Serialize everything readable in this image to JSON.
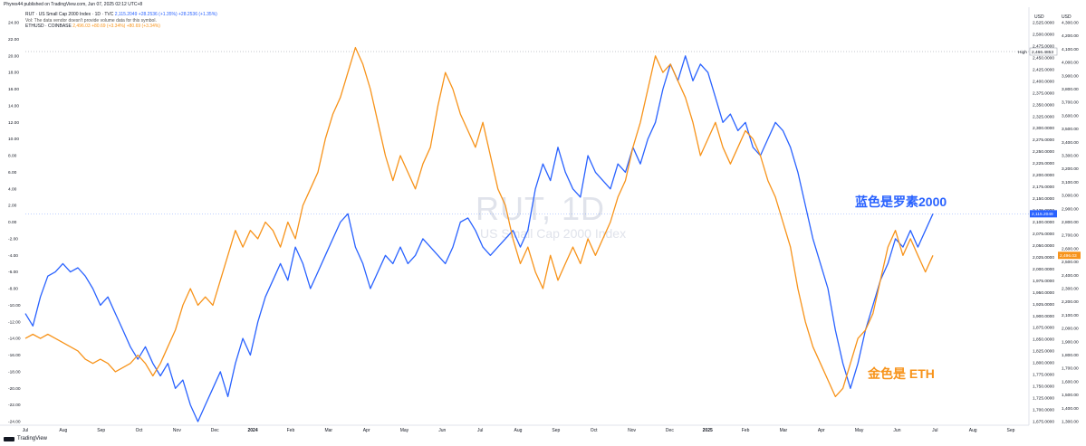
{
  "header": {
    "published": "Phyres44 published on TradingView.com, Jun 07, 2025 02:12 UTC+8"
  },
  "legend": {
    "rut_name": "RUT · US Small Cap 2000 Index · 1D · TVC",
    "rut_values": "2,115.2049  +28.2536 (+1.35%)  +28.2536 (+1.35%)",
    "vol_note": "Vol: The data vendor doesn't provide volume data for this symbol.",
    "eth_name": "ETHUSD · COINBASE",
    "eth_values": "2,496.03  +80.69 (+3.34%)  +80.69 (+3.34%)"
  },
  "watermark": {
    "symbol": "RUT, 1D",
    "description": "US Small Cap 2000 Index"
  },
  "annotations": {
    "blue": "蓝色是罗素2000",
    "orange": "金色是 ETH"
  },
  "axis_headers": {
    "usd_left": "USD",
    "usd_right": "USD"
  },
  "footer": {
    "brand": "TradingView"
  },
  "markers": {
    "high_label": "High",
    "high_value": "2,466.4853",
    "rut_last": "2,115.2049",
    "eth_last": "2,496.03"
  },
  "colors": {
    "rut": "#2962ff",
    "eth": "#f7931a",
    "grid": "#f0f3fa"
  },
  "chart_data": {
    "type": "line",
    "x_ticks": [
      "Jul",
      "Aug",
      "Sep",
      "Oct",
      "Nov",
      "Dec",
      "2024",
      "Feb",
      "Mar",
      "Apr",
      "May",
      "Jun",
      "Jul",
      "Aug",
      "Sep",
      "Oct",
      "Nov",
      "Dec",
      "2025",
      "Feb",
      "Mar",
      "Apr",
      "May",
      "Jun",
      "Jul",
      "Aug",
      "Sep"
    ],
    "bold_x_ticks": [
      "2024",
      "2025"
    ],
    "left_axis": {
      "label": "percent",
      "range": [
        -24,
        24
      ],
      "ticks": [
        "24.00",
        "22.00",
        "20.00",
        "18.00",
        "16.00",
        "14.00",
        "12.00",
        "10.00",
        "8.00",
        "6.00",
        "4.00",
        "2.00",
        "0.00",
        "-2.00",
        "-4.00",
        "-6.00",
        "-8.00",
        "-10.00",
        "-12.00",
        "-14.00",
        "-16.00",
        "-18.00",
        "-20.00",
        "-22.00",
        "-24.00"
      ]
    },
    "rut_axis": {
      "range": [
        1675,
        2525
      ],
      "ticks": [
        "2,525.0000",
        "2,500.0000",
        "2,475.0000",
        "2,450.0000",
        "2,425.0000",
        "2,400.0000",
        "2,375.0000",
        "2,350.0000",
        "2,325.0000",
        "2,300.0000",
        "2,275.0000",
        "2,250.0000",
        "2,225.0000",
        "2,200.0000",
        "2,175.0000",
        "2,150.0000",
        "2,125.0000",
        "2,100.0000",
        "2,075.0000",
        "2,050.0000",
        "2,025.0000",
        "2,000.0000",
        "1,975.0000",
        "1,950.0000",
        "1,925.0000",
        "1,900.0000",
        "1,875.0000",
        "1,850.0000",
        "1,825.0000",
        "1,800.0000",
        "1,775.0000",
        "1,750.0000",
        "1,725.0000",
        "1,700.0000",
        "1,675.0000"
      ]
    },
    "eth_axis": {
      "range": [
        1300,
        4300
      ],
      "ticks": [
        "4,300.00",
        "4,200.00",
        "4,100.00",
        "4,000.00",
        "3,900.00",
        "3,800.00",
        "3,700.00",
        "3,600.00",
        "3,500.00",
        "3,400.00",
        "3,300.00",
        "3,200.00",
        "3,100.00",
        "3,000.00",
        "2,900.00",
        "2,800.00",
        "2,700.00",
        "2,600.00",
        "2,500.00",
        "2,400.00",
        "2,300.00",
        "2,200.00",
        "2,100.00",
        "2,000.00",
        "1,900.00",
        "1,800.00",
        "1,700.00",
        "1,600.00",
        "1,500.00",
        "1,400.00",
        "1,300.00"
      ]
    },
    "series": [
      {
        "name": "RUT",
        "unit": "percent change",
        "values": [
          [
            0,
            -11
          ],
          [
            2,
            -12.5
          ],
          [
            4,
            -9
          ],
          [
            6,
            -6.5
          ],
          [
            8,
            -6
          ],
          [
            10,
            -5
          ],
          [
            12,
            -6
          ],
          [
            14,
            -5.5
          ],
          [
            16,
            -6.5
          ],
          [
            18,
            -8
          ],
          [
            20,
            -10
          ],
          [
            22,
            -9
          ],
          [
            24,
            -11
          ],
          [
            26,
            -13
          ],
          [
            28,
            -15
          ],
          [
            30,
            -16.5
          ],
          [
            32,
            -15
          ],
          [
            34,
            -17
          ],
          [
            36,
            -18.5
          ],
          [
            38,
            -17
          ],
          [
            40,
            -20
          ],
          [
            42,
            -19
          ],
          [
            44,
            -22
          ],
          [
            46,
            -24
          ],
          [
            48,
            -22
          ],
          [
            50,
            -20
          ],
          [
            52,
            -18
          ],
          [
            54,
            -21
          ],
          [
            56,
            -17
          ],
          [
            58,
            -14
          ],
          [
            60,
            -16
          ],
          [
            62,
            -12
          ],
          [
            64,
            -9
          ],
          [
            66,
            -7
          ],
          [
            68,
            -5
          ],
          [
            70,
            -7
          ],
          [
            72,
            -3
          ],
          [
            74,
            -5
          ],
          [
            76,
            -8
          ],
          [
            78,
            -6
          ],
          [
            80,
            -4
          ],
          [
            82,
            -2
          ],
          [
            84,
            0
          ],
          [
            86,
            1
          ],
          [
            88,
            -3
          ],
          [
            90,
            -5
          ],
          [
            92,
            -8
          ],
          [
            94,
            -6
          ],
          [
            96,
            -4
          ],
          [
            98,
            -5
          ],
          [
            100,
            -3
          ],
          [
            102,
            -5
          ],
          [
            104,
            -4
          ],
          [
            106,
            -2
          ],
          [
            108,
            -3
          ],
          [
            110,
            -4
          ],
          [
            112,
            -5
          ],
          [
            114,
            -3
          ],
          [
            116,
            0
          ],
          [
            118,
            0.5
          ],
          [
            120,
            -1
          ],
          [
            122,
            -3
          ],
          [
            124,
            -4
          ],
          [
            126,
            -3
          ],
          [
            128,
            -2
          ],
          [
            130,
            -1
          ],
          [
            132,
            -3
          ],
          [
            134,
            -1
          ],
          [
            136,
            4
          ],
          [
            138,
            7
          ],
          [
            140,
            5
          ],
          [
            142,
            9
          ],
          [
            144,
            6
          ],
          [
            146,
            4
          ],
          [
            148,
            3
          ],
          [
            150,
            8
          ],
          [
            152,
            6
          ],
          [
            154,
            5
          ],
          [
            156,
            4
          ],
          [
            158,
            7
          ],
          [
            160,
            6
          ],
          [
            162,
            9
          ],
          [
            164,
            7
          ],
          [
            166,
            10
          ],
          [
            168,
            12
          ],
          [
            170,
            16
          ],
          [
            172,
            19
          ],
          [
            174,
            17
          ],
          [
            176,
            20
          ],
          [
            178,
            17
          ],
          [
            180,
            19
          ],
          [
            182,
            18
          ],
          [
            184,
            15
          ],
          [
            186,
            12
          ],
          [
            188,
            13
          ],
          [
            190,
            11
          ],
          [
            192,
            12
          ],
          [
            194,
            9
          ],
          [
            196,
            8
          ],
          [
            198,
            10
          ],
          [
            200,
            12
          ],
          [
            202,
            11
          ],
          [
            204,
            9
          ],
          [
            206,
            6
          ],
          [
            208,
            2
          ],
          [
            210,
            -2
          ],
          [
            212,
            -5
          ],
          [
            214,
            -8
          ],
          [
            216,
            -13
          ],
          [
            218,
            -17
          ],
          [
            220,
            -20
          ],
          [
            222,
            -17
          ],
          [
            224,
            -13
          ],
          [
            226,
            -10
          ],
          [
            228,
            -7
          ],
          [
            230,
            -5
          ],
          [
            232,
            -2
          ],
          [
            234,
            -3
          ],
          [
            236,
            -1
          ],
          [
            238,
            -3
          ],
          [
            240,
            -1
          ],
          [
            242,
            1
          ]
        ]
      },
      {
        "name": "ETH",
        "unit": "percent change",
        "values": [
          [
            0,
            -14
          ],
          [
            2,
            -13.5
          ],
          [
            4,
            -14
          ],
          [
            6,
            -13.5
          ],
          [
            8,
            -14
          ],
          [
            10,
            -14.5
          ],
          [
            12,
            -15
          ],
          [
            14,
            -15.5
          ],
          [
            16,
            -16.5
          ],
          [
            18,
            -17
          ],
          [
            20,
            -16.5
          ],
          [
            22,
            -17
          ],
          [
            24,
            -18
          ],
          [
            26,
            -17.5
          ],
          [
            28,
            -17
          ],
          [
            30,
            -16
          ],
          [
            32,
            -17
          ],
          [
            34,
            -18.5
          ],
          [
            36,
            -17
          ],
          [
            38,
            -15
          ],
          [
            40,
            -13
          ],
          [
            42,
            -10
          ],
          [
            44,
            -8
          ],
          [
            46,
            -10
          ],
          [
            48,
            -9
          ],
          [
            50,
            -10
          ],
          [
            52,
            -7
          ],
          [
            54,
            -4
          ],
          [
            56,
            -1
          ],
          [
            58,
            -3
          ],
          [
            60,
            -1
          ],
          [
            62,
            -2
          ],
          [
            64,
            0
          ],
          [
            66,
            -1
          ],
          [
            68,
            -3
          ],
          [
            70,
            0
          ],
          [
            72,
            -2
          ],
          [
            74,
            2
          ],
          [
            76,
            4
          ],
          [
            78,
            6
          ],
          [
            80,
            10
          ],
          [
            82,
            13
          ],
          [
            84,
            15
          ],
          [
            86,
            18
          ],
          [
            88,
            21
          ],
          [
            90,
            19
          ],
          [
            92,
            16
          ],
          [
            94,
            12
          ],
          [
            96,
            8
          ],
          [
            98,
            5
          ],
          [
            100,
            8
          ],
          [
            102,
            6
          ],
          [
            104,
            4
          ],
          [
            106,
            7
          ],
          [
            108,
            9
          ],
          [
            110,
            14
          ],
          [
            112,
            18
          ],
          [
            114,
            16
          ],
          [
            116,
            13
          ],
          [
            118,
            11
          ],
          [
            120,
            9
          ],
          [
            122,
            12
          ],
          [
            124,
            8
          ],
          [
            126,
            4
          ],
          [
            128,
            2
          ],
          [
            130,
            -2
          ],
          [
            132,
            -5
          ],
          [
            134,
            -3
          ],
          [
            136,
            -6
          ],
          [
            138,
            -8
          ],
          [
            140,
            -4
          ],
          [
            142,
            -7
          ],
          [
            144,
            -5
          ],
          [
            146,
            -3
          ],
          [
            148,
            -5
          ],
          [
            150,
            -2
          ],
          [
            152,
            -4
          ],
          [
            154,
            -2
          ],
          [
            156,
            0
          ],
          [
            158,
            3
          ],
          [
            160,
            5
          ],
          [
            162,
            9
          ],
          [
            164,
            12
          ],
          [
            166,
            16
          ],
          [
            168,
            20
          ],
          [
            170,
            18
          ],
          [
            172,
            19
          ],
          [
            174,
            17
          ],
          [
            176,
            15
          ],
          [
            178,
            12
          ],
          [
            180,
            8
          ],
          [
            182,
            10
          ],
          [
            184,
            12
          ],
          [
            186,
            9
          ],
          [
            188,
            7
          ],
          [
            190,
            9
          ],
          [
            192,
            11
          ],
          [
            194,
            10
          ],
          [
            196,
            8
          ],
          [
            198,
            5
          ],
          [
            200,
            3
          ],
          [
            202,
            0
          ],
          [
            204,
            -3
          ],
          [
            206,
            -8
          ],
          [
            208,
            -12
          ],
          [
            210,
            -15
          ],
          [
            212,
            -17
          ],
          [
            214,
            -19
          ],
          [
            216,
            -21
          ],
          [
            218,
            -20
          ],
          [
            220,
            -17
          ],
          [
            222,
            -14
          ],
          [
            224,
            -13
          ],
          [
            226,
            -11
          ],
          [
            228,
            -7
          ],
          [
            230,
            -3
          ],
          [
            232,
            -1
          ],
          [
            234,
            -4
          ],
          [
            236,
            -2
          ],
          [
            238,
            -4
          ],
          [
            240,
            -6
          ],
          [
            242,
            -4
          ]
        ]
      }
    ]
  }
}
